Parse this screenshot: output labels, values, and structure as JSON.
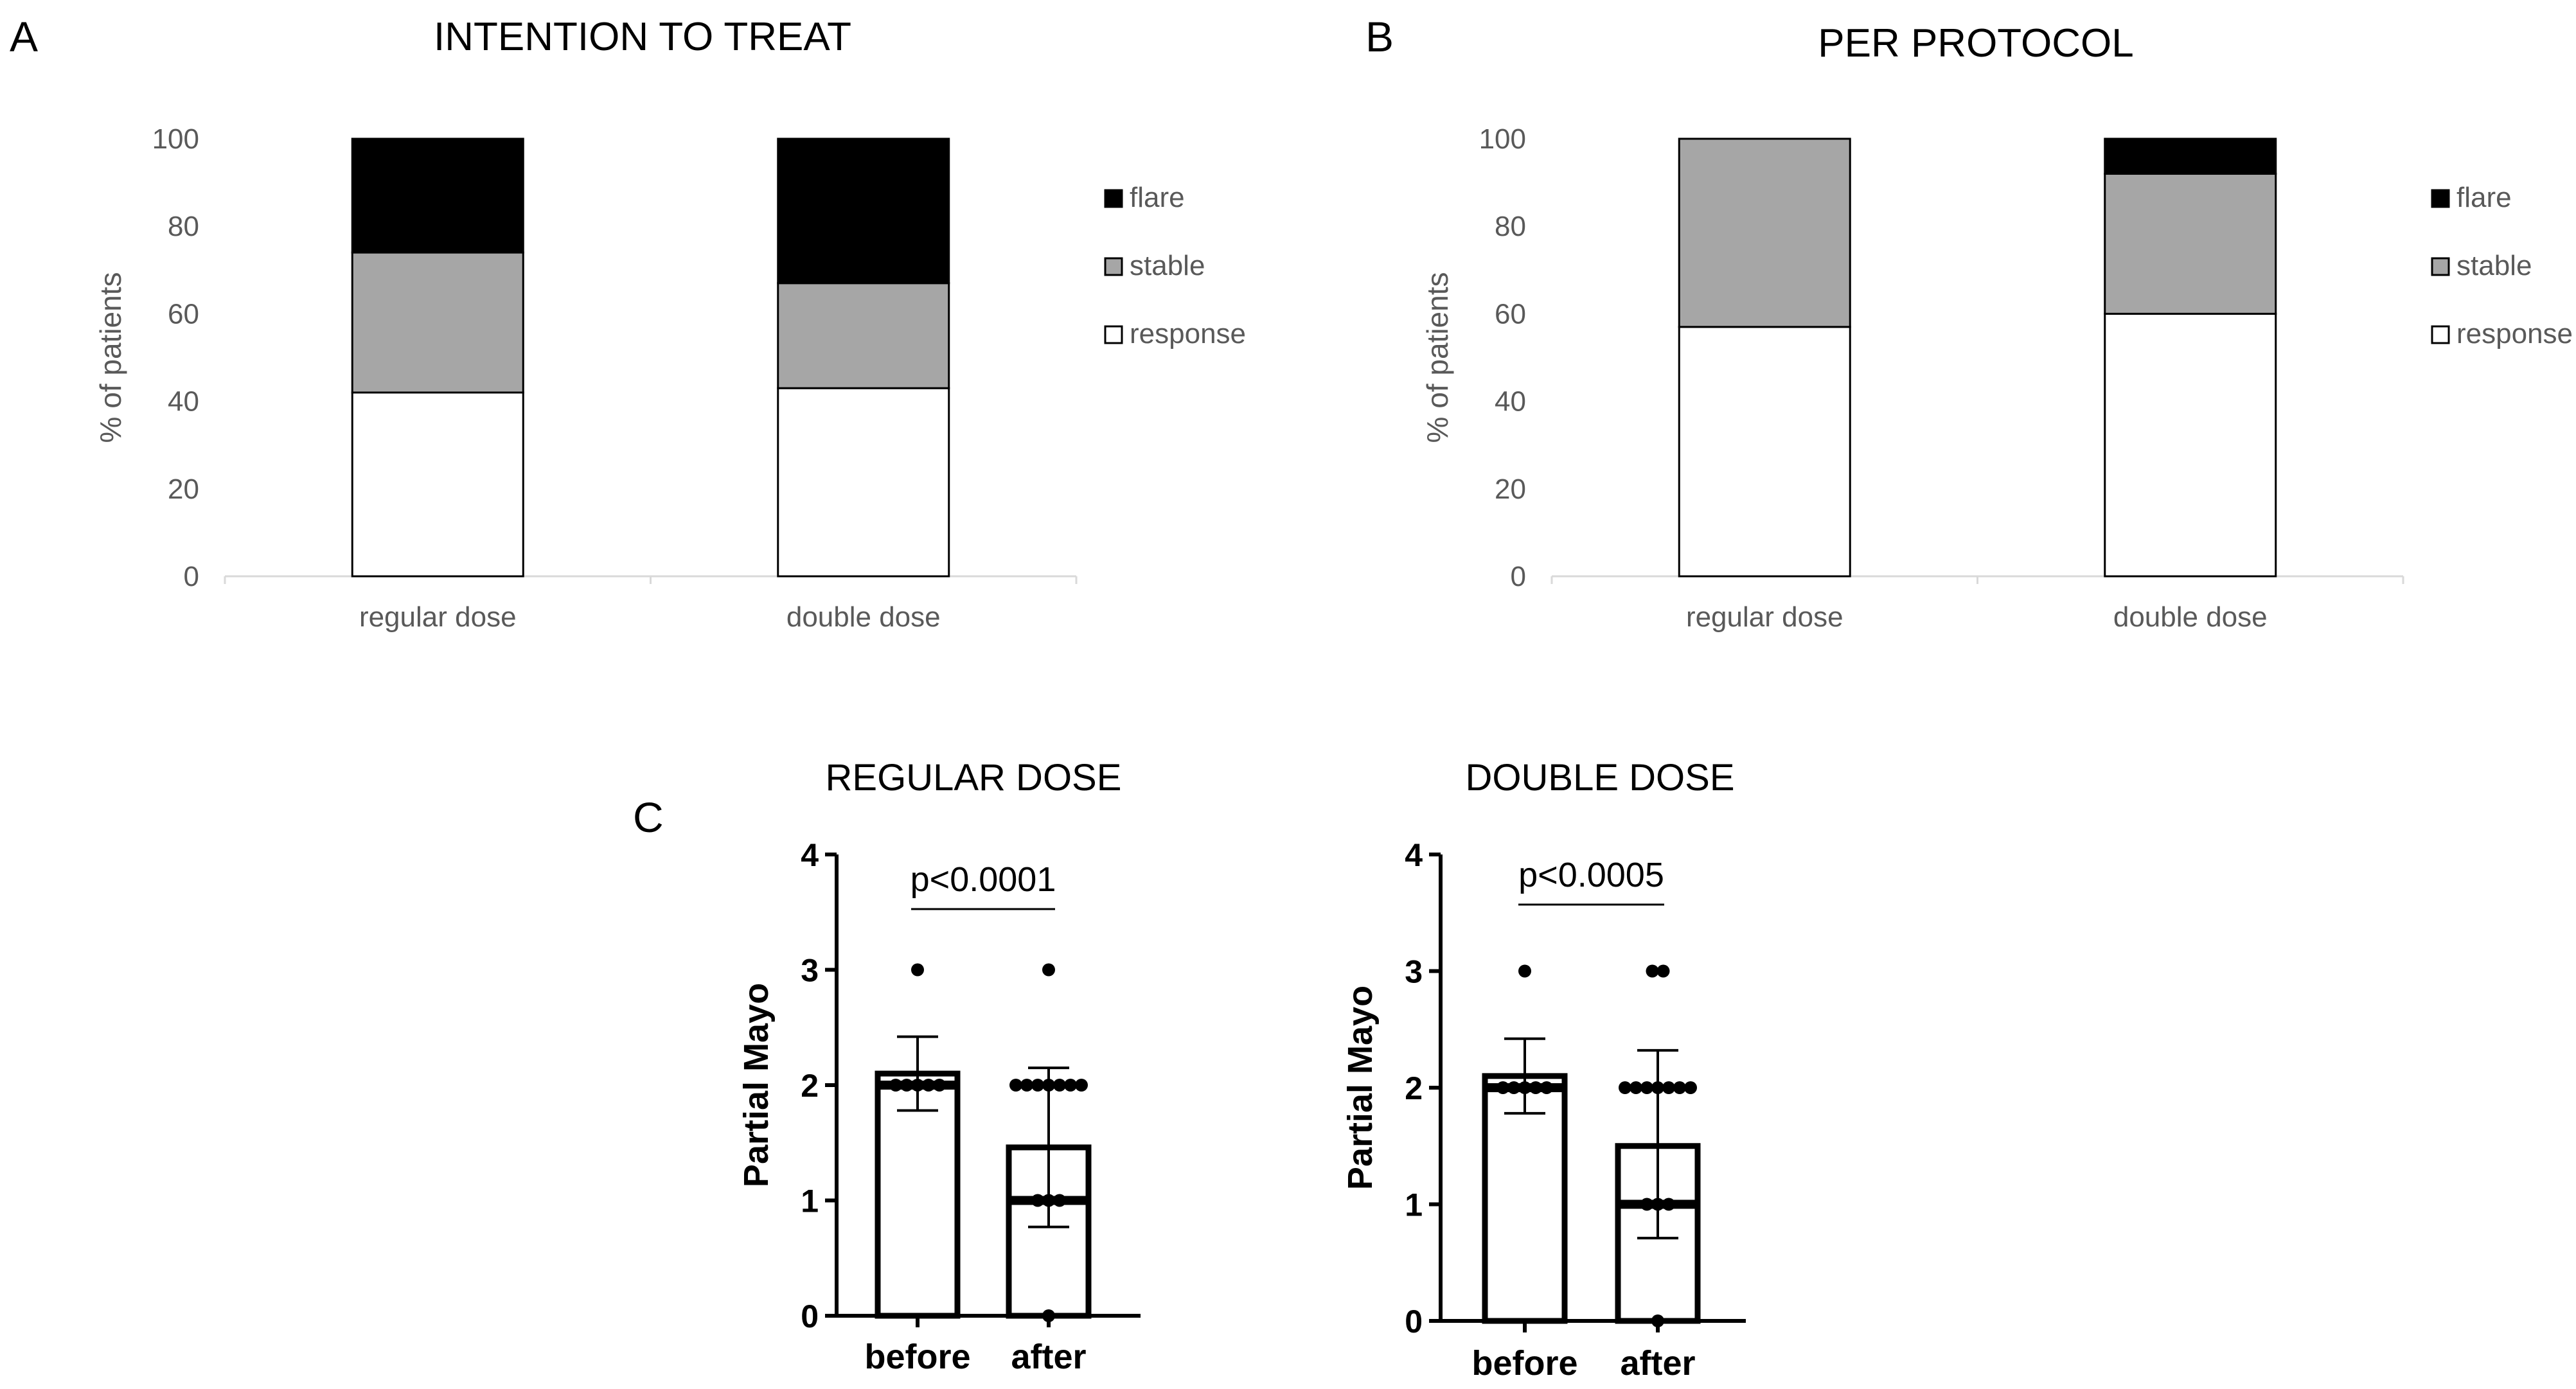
{
  "panel_letters": [
    "A",
    "B",
    "C"
  ],
  "chart_data": [
    {
      "type": "bar",
      "stacked": true,
      "panel": "A",
      "title": "INTENTION TO TREAT",
      "ylabel": "% of patients",
      "xlabel": "",
      "ylim": [
        0,
        100
      ],
      "yticks": [
        0,
        20,
        40,
        60,
        80,
        100
      ],
      "categories": [
        "regular dose",
        "double dose"
      ],
      "legend_position": "right",
      "series": [
        {
          "name": "response",
          "color": "#ffffff",
          "values": [
            42,
            43
          ]
        },
        {
          "name": "stable",
          "color": "#a6a6a6",
          "values": [
            32,
            24
          ]
        },
        {
          "name": "flare",
          "color": "#000000",
          "values": [
            26,
            33
          ]
        }
      ]
    },
    {
      "type": "bar",
      "stacked": true,
      "panel": "B",
      "title": "PER PROTOCOL",
      "ylabel": "% of patients",
      "xlabel": "",
      "ylim": [
        0,
        100
      ],
      "yticks": [
        0,
        20,
        40,
        60,
        80,
        100
      ],
      "categories": [
        "regular dose",
        "double dose"
      ],
      "legend_position": "right",
      "series": [
        {
          "name": "response",
          "color": "#ffffff",
          "values": [
            57,
            60
          ]
        },
        {
          "name": "stable",
          "color": "#a6a6a6",
          "values": [
            43,
            32
          ]
        },
        {
          "name": "flare",
          "color": "#000000",
          "values": [
            0,
            8
          ]
        }
      ]
    },
    {
      "type": "bar",
      "panel": "C",
      "title": "REGULAR  DOSE",
      "ylabel": "Partial Mayo",
      "xlabel": "",
      "ylim": [
        0,
        4
      ],
      "yticks": [
        0,
        1,
        2,
        3,
        4
      ],
      "categories": [
        "before",
        "after"
      ],
      "values": [
        2.1,
        1.46
      ],
      "error": [
        [
          1.78,
          2.42
        ],
        [
          0.77,
          2.15
        ]
      ],
      "median": [
        2,
        1
      ],
      "points": [
        [
          3,
          2,
          2,
          2,
          2,
          2
        ],
        [
          3,
          2,
          2,
          2,
          2,
          2,
          2,
          2,
          1,
          1,
          1,
          0
        ]
      ],
      "annotation": "p<0.0001"
    },
    {
      "type": "bar",
      "panel": "C",
      "title": "DOUBLE  DOSE",
      "ylabel": "Partial Mayo",
      "xlabel": "",
      "ylim": [
        0,
        4
      ],
      "yticks": [
        0,
        1,
        2,
        3,
        4
      ],
      "categories": [
        "before",
        "after"
      ],
      "values": [
        2.1,
        1.5
      ],
      "error": [
        [
          1.78,
          2.42
        ],
        [
          0.71,
          2.32
        ]
      ],
      "median": [
        2,
        1
      ],
      "points": [
        [
          3,
          2,
          2,
          2,
          2,
          2
        ],
        [
          3,
          3,
          2,
          2,
          2,
          2,
          2,
          2,
          2,
          1,
          1,
          1,
          0
        ]
      ],
      "annotation": "p<0.0005"
    }
  ]
}
